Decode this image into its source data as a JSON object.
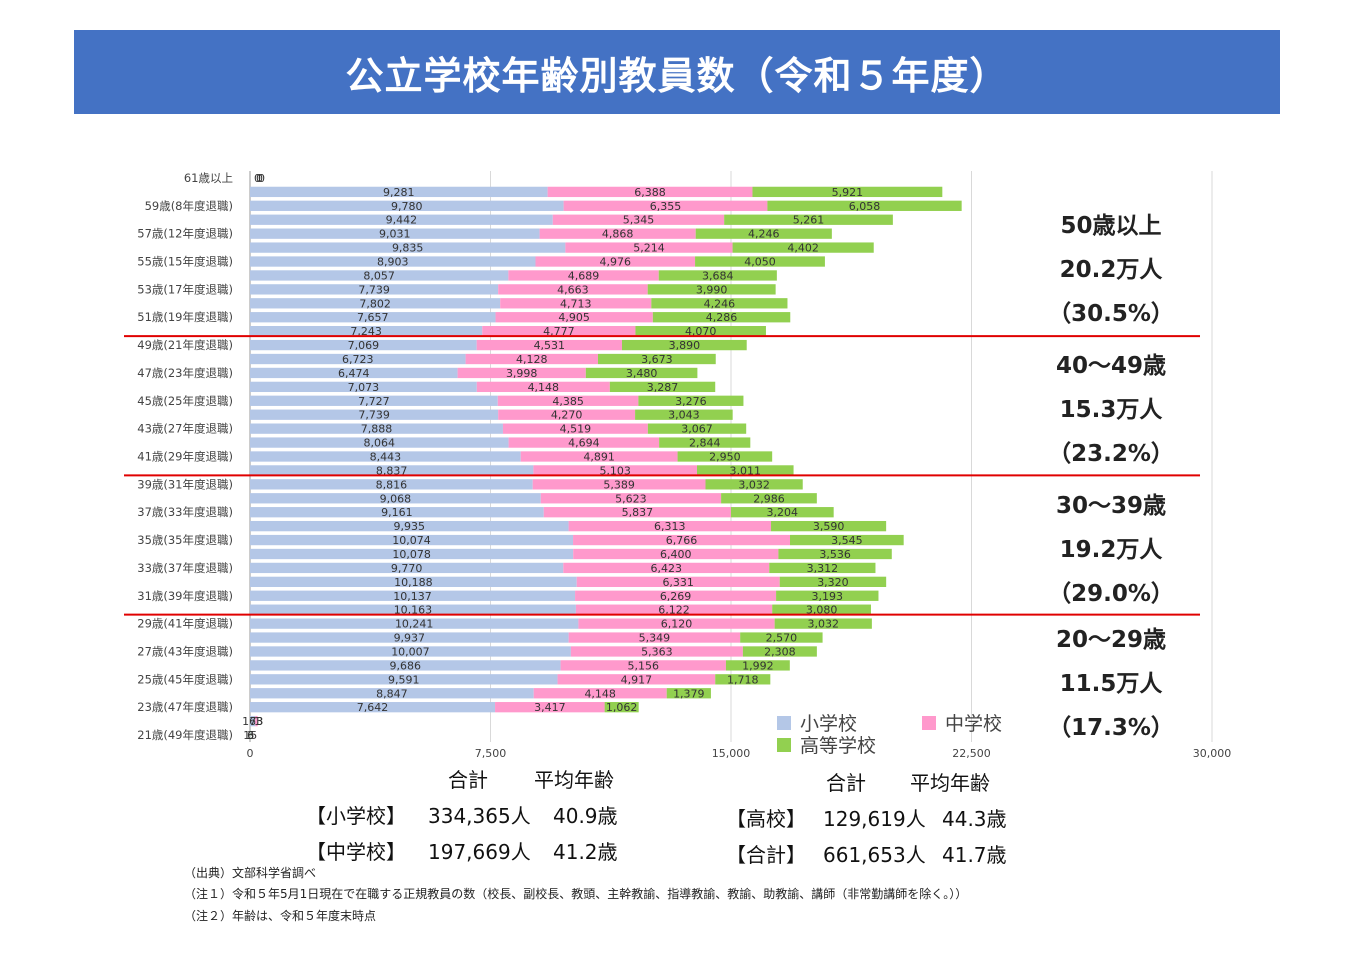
{
  "title": "公立学校年齢別教員数（令和５年度）",
  "chart_data": {
    "type": "bar",
    "orientation": "horizontal",
    "stacked": true,
    "xlim": [
      0,
      30000
    ],
    "xticks": [
      "0",
      "7,500",
      "15,000",
      "22,500",
      "30,000"
    ],
    "grid": true,
    "legend_position": "bottom-right",
    "y_tick_labels": [
      "61歳以上",
      "59歳(8年度退職)",
      "57歳(12年度退職)",
      "55歳(15年度退職)",
      "53歳(17年度退職)",
      "51歳(19年度退職)",
      "49歳(21年度退職)",
      "47歳(23年度退職)",
      "45歳(25年度退職)",
      "43歳(27年度退職)",
      "41歳(29年度退職)",
      "39歳(31年度退職)",
      "37歳(33年度退職)",
      "35歳(35年度退職)",
      "33歳(37年度退職)",
      "31歳(39年度退職)",
      "29歳(41年度退職)",
      "27歳(43年度退職)",
      "25歳(45年度退職)",
      "23歳(47年度退職)",
      "21歳(49年度退職)"
    ],
    "series": [
      {
        "name": "小学校",
        "color": "#b4c7e7",
        "values": [
          0,
          9281,
          9780,
          9442,
          9031,
          9835,
          8903,
          8057,
          7739,
          7802,
          7657,
          7243,
          7069,
          6723,
          6474,
          7073,
          7727,
          7739,
          7888,
          8064,
          8443,
          8837,
          8816,
          9068,
          9161,
          9935,
          10074,
          10078,
          9770,
          10188,
          10137,
          10163,
          10241,
          9937,
          10007,
          9686,
          9591,
          8847,
          7642,
          163,
          15
        ],
        "labels": [
          "0",
          "9,281",
          "9,780",
          "9,442",
          "9,031",
          "9,835",
          "8,903",
          "8,057",
          "7,739",
          "7,802",
          "7,657",
          "7,243",
          "7,069",
          "6,723",
          "6,474",
          "7,073",
          "7,727",
          "7,739",
          "7,888",
          "8,064",
          "8,443",
          "8,837",
          "8,816",
          "9,068",
          "9,161",
          "9,935",
          "10,074",
          "10,078",
          "9,770",
          "10,188",
          "10,137",
          "10,163",
          "10,241",
          "9,937",
          "10,007",
          "9,686",
          "9,591",
          "8,847",
          "7,642",
          "163",
          "15"
        ]
      },
      {
        "name": "中学校",
        "color": "#ff99cc",
        "values": [
          0,
          6388,
          6355,
          5345,
          4868,
          5214,
          4976,
          4689,
          4663,
          4713,
          4905,
          4777,
          4531,
          4128,
          3998,
          4148,
          4385,
          4270,
          4519,
          4694,
          4891,
          5103,
          5389,
          5623,
          5837,
          6313,
          6766,
          6400,
          6423,
          6331,
          6269,
          6122,
          6120,
          5349,
          5363,
          5156,
          4917,
          4148,
          3417,
          73,
          3
        ],
        "labels": [
          "0",
          "6,388",
          "6,355",
          "5,345",
          "4,868",
          "5,214",
          "4,976",
          "4,689",
          "4,663",
          "4,713",
          "4,905",
          "4,777",
          "4,531",
          "4,128",
          "3,998",
          "4,148",
          "4,385",
          "4,270",
          "4,519",
          "4,694",
          "4,891",
          "5,103",
          "5,389",
          "5,623",
          "5,837",
          "6,313",
          "6,766",
          "6,400",
          "6,423",
          "6,331",
          "6,269",
          "6,122",
          "6,120",
          "5,349",
          "5,363",
          "5,156",
          "4,917",
          "4,148",
          "3,417",
          "73",
          "3"
        ]
      },
      {
        "name": "高等学校",
        "color": "#92d050",
        "values": [
          0,
          5921,
          6058,
          5261,
          4246,
          4402,
          4050,
          3684,
          3990,
          4246,
          4286,
          4070,
          3890,
          3673,
          3480,
          3287,
          3276,
          3043,
          3067,
          2844,
          2950,
          3011,
          3032,
          2986,
          3204,
          3590,
          3545,
          3536,
          3312,
          3320,
          3193,
          3080,
          3032,
          2570,
          2308,
          1992,
          1718,
          1379,
          1062,
          1,
          6
        ],
        "labels": [
          "0",
          "5,921",
          "6,058",
          "5,261",
          "4,246",
          "4,402",
          "4,050",
          "3,684",
          "3,990",
          "4,246",
          "4,286",
          "4,070",
          "3,890",
          "3,673",
          "3,480",
          "3,287",
          "3,276",
          "3,043",
          "3,067",
          "2,844",
          "2,950",
          "3,011",
          "3,032",
          "2,986",
          "3,204",
          "3,590",
          "3,545",
          "3,536",
          "3,312",
          "3,320",
          "3,193",
          "3,080",
          "3,032",
          "2,570",
          "2,308",
          "1,992",
          "1,718",
          "1,379",
          "1,062",
          "1",
          "6"
        ]
      }
    ]
  },
  "summaries": [
    {
      "range": "50歳以上",
      "count": "20.2万人",
      "share": "（30.5%）"
    },
    {
      "range": "40〜49歳",
      "count": "15.3万人",
      "share": "（23.2%）"
    },
    {
      "range": "30〜39歳",
      "count": "19.2万人",
      "share": "（29.0%）"
    },
    {
      "range": "20〜29歳",
      "count": "11.5万人",
      "share": "（17.3%）"
    }
  ],
  "stats": {
    "col_total": "合計",
    "col_avg": "平均年齢",
    "elementary": {
      "label": "【小学校】",
      "total": "334,365人",
      "avg": "40.9歳"
    },
    "junior": {
      "label": "【中学校】",
      "total": "197,669人",
      "avg": "41.2歳"
    },
    "high": {
      "label": "【高校】",
      "total": "129,619人",
      "avg": "44.3歳"
    },
    "all": {
      "label": "【合計】",
      "total": "661,653人",
      "avg": "41.7歳"
    }
  },
  "notes": {
    "source": "（出典）文部科学省調べ",
    "note1": "（注１）令和５年5月1日現在で在職する正規教員の数（校長、副校長、教頭、主幹教諭、指導教諭、教諭、助教諭、講師（非常勤講師を除く。））",
    "note2": "（注２）年齢は、令和５年度末時点"
  }
}
